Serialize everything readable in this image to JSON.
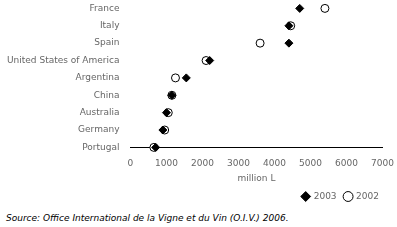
{
  "chart_data": {
    "type": "dot",
    "orientation": "horizontal",
    "categories": [
      "France",
      "Italy",
      "Spain",
      "United States of America",
      "Argentina",
      "China",
      "Australia",
      "Germany",
      "Portugal"
    ],
    "series": [
      {
        "name": "2003",
        "color": "#000000",
        "marker": "diamond",
        "values": [
          4700,
          4400,
          4400,
          2200,
          1550,
          1150,
          1000,
          900,
          700
        ]
      },
      {
        "name": "2002",
        "color": "#ffffff",
        "marker": "circle",
        "values": [
          5400,
          4450,
          3600,
          2100,
          1250,
          1150,
          1050,
          950,
          650
        ]
      }
    ],
    "xlabel": "million L",
    "xlim": [
      0,
      7000
    ],
    "xticks": [
      0,
      1000,
      2000,
      3000,
      4000,
      5000,
      6000,
      7000
    ],
    "grid": false,
    "legend": "lower right",
    "annotations": [
      "Source: Office International de la Vigne et du Vin (O.I.V.) 2006."
    ]
  }
}
